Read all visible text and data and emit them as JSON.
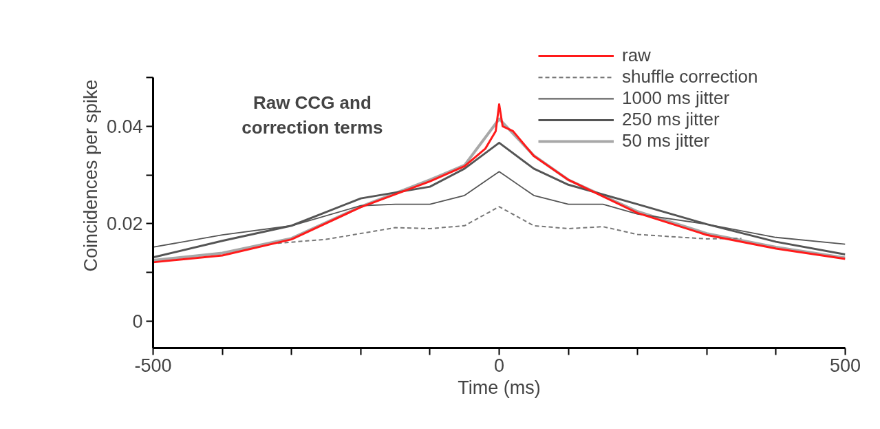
{
  "chart_data": {
    "type": "line",
    "title": "Raw CCG and\ncorrection terms",
    "xlabel": "Time (ms)",
    "ylabel": "Coincidences per spike",
    "xlim": [
      -500,
      500
    ],
    "ylim": [
      -0.0055,
      0.05
    ],
    "xticks": [
      -500,
      {
        "value": -400,
        "label": null
      },
      {
        "value": -300,
        "label": null
      },
      {
        "value": -200,
        "label": null
      },
      {
        "value": -100,
        "label": null
      },
      0,
      {
        "value": 100,
        "label": null
      },
      {
        "value": 200,
        "label": null
      },
      {
        "value": 300,
        "label": null
      },
      {
        "value": 400,
        "label": null
      },
      500
    ],
    "yticks": [
      0,
      {
        "value": 0.01,
        "label": null
      },
      0.02,
      {
        "value": 0.03,
        "label": null
      },
      0.04,
      {
        "value": 0.05,
        "label": null
      }
    ],
    "grid": false,
    "legend": "top right",
    "series": [
      {
        "name": "raw",
        "color": "#ff1a1a",
        "x": [
          -500,
          -400,
          -300,
          -200,
          -100,
          -50,
          -20,
          -5,
          0,
          5,
          20,
          50,
          100,
          200,
          300,
          400,
          500
        ],
        "values": [
          0.0121,
          0.0135,
          0.0168,
          0.0234,
          0.0287,
          0.0318,
          0.0354,
          0.039,
          0.0445,
          0.04,
          0.039,
          0.0339,
          0.029,
          0.0222,
          0.0177,
          0.0149,
          0.0128
        ]
      },
      {
        "name": "shuffle correction",
        "color": "#777777",
        "line_style": "dashed",
        "x": [
          -320,
          -250,
          -200,
          -150,
          -100,
          -50,
          0,
          50,
          100,
          150,
          200,
          300,
          350
        ],
        "values": [
          0.016,
          0.0168,
          0.018,
          0.0192,
          0.019,
          0.0196,
          0.0235,
          0.0196,
          0.019,
          0.0194,
          0.0178,
          0.0169,
          0.017
        ]
      },
      {
        "name": "1000 ms jitter",
        "color": "#555555",
        "x": [
          -500,
          -400,
          -300,
          -200,
          -150,
          -100,
          -50,
          0,
          50,
          100,
          150,
          200,
          300,
          400,
          500
        ],
        "values": [
          0.0152,
          0.0177,
          0.0196,
          0.0237,
          0.024,
          0.024,
          0.0258,
          0.0307,
          0.0258,
          0.024,
          0.024,
          0.022,
          0.0199,
          0.0172,
          0.0158
        ]
      },
      {
        "name": "250 ms jitter",
        "color": "#555555",
        "x": [
          -500,
          -400,
          -300,
          -200,
          -100,
          -50,
          0,
          50,
          100,
          200,
          300,
          400,
          500
        ],
        "values": [
          0.0131,
          0.0165,
          0.0196,
          0.0252,
          0.0276,
          0.0313,
          0.0366,
          0.0313,
          0.028,
          0.024,
          0.0199,
          0.0163,
          0.0137
        ]
      },
      {
        "name": "50 ms jitter",
        "color": "#a8a8a8",
        "x": [
          -500,
          -400,
          -300,
          -200,
          -100,
          -50,
          0,
          50,
          100,
          200,
          300,
          400,
          500
        ],
        "values": [
          0.0125,
          0.014,
          0.017,
          0.0235,
          0.029,
          0.032,
          0.0415,
          0.034,
          0.029,
          0.0225,
          0.018,
          0.0152,
          0.013
        ]
      }
    ]
  }
}
